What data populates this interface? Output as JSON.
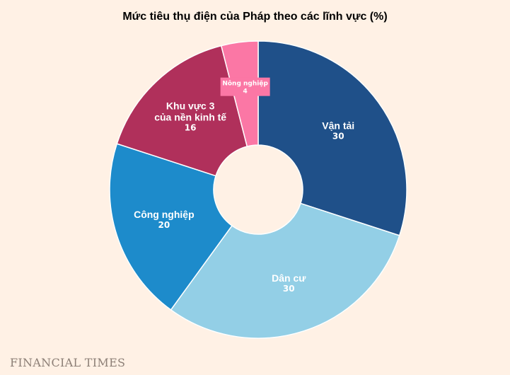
{
  "chart_data": {
    "type": "pie",
    "variant": "donut",
    "title": "Mức tiêu thụ điện của Pháp theo các lĩnh vực (%)",
    "slices": [
      {
        "label": "Vận tải",
        "value": 30,
        "color": "#1f5089"
      },
      {
        "label": "Dân cư",
        "value": 30,
        "color": "#93cfe6"
      },
      {
        "label": "Công nghiệp",
        "value": 20,
        "color": "#1d8bcb"
      },
      {
        "label": "Khu vực 3\ncủa nền kinh tế",
        "value": 16,
        "color": "#b0305b"
      },
      {
        "label": "Nông nghiệp",
        "value": 4,
        "color": "#fb77a5"
      }
    ]
  },
  "source": {
    "brand": "FINANCIAL TIMES"
  }
}
